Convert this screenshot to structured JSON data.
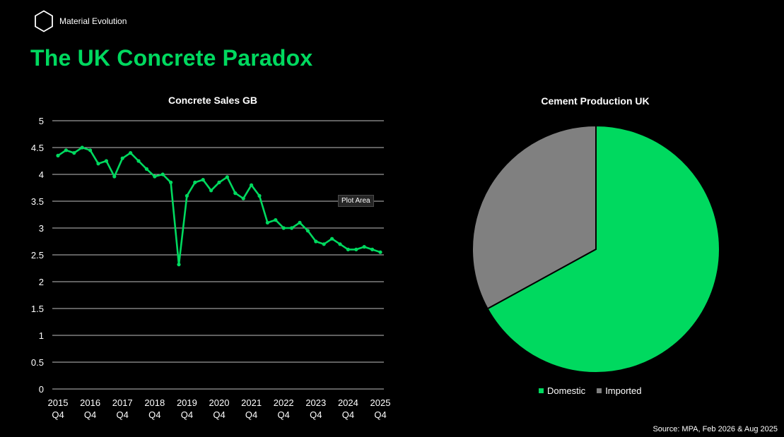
{
  "brand": {
    "name": "Material Evolution",
    "logo_icon": "hexagon-outline-icon"
  },
  "page_title": "The UK Concrete Paradox",
  "tooltip": "Plot Area",
  "source": "Source: MPA, Feb 2026 & Aug 2025",
  "colors": {
    "accent": "#00d95f",
    "grey": "#808080",
    "gridline": "#ffffff",
    "background": "#000000"
  },
  "chart_data": [
    {
      "type": "line",
      "title": "Concrete Sales GB",
      "xlabel": "",
      "ylabel": "",
      "ylim": [
        0,
        5
      ],
      "yticks": [
        "0",
        "0.5",
        "1",
        "1.5",
        "2",
        "2.5",
        "3",
        "3.5",
        "4",
        "4.5",
        "5"
      ],
      "xticks": [
        {
          "line1": "2015",
          "line2": "Q4"
        },
        {
          "line1": "2016",
          "line2": "Q4"
        },
        {
          "line1": "2017",
          "line2": "Q4"
        },
        {
          "line1": "2018",
          "line2": "Q4"
        },
        {
          "line1": "2019",
          "line2": "Q4"
        },
        {
          "line1": "2020",
          "line2": "Q4"
        },
        {
          "line1": "2021",
          "line2": "Q4"
        },
        {
          "line1": "2022",
          "line2": "Q4"
        },
        {
          "line1": "2023",
          "line2": "Q4"
        },
        {
          "line1": "2024",
          "line2": "Q4"
        },
        {
          "line1": "2025",
          "line2": "Q4"
        }
      ],
      "grid": true,
      "values": [
        4.35,
        4.45,
        4.4,
        4.5,
        4.45,
        4.2,
        4.25,
        3.96,
        4.3,
        4.4,
        4.25,
        4.1,
        3.96,
        4.0,
        3.85,
        2.32,
        3.6,
        3.85,
        3.9,
        3.7,
        3.85,
        3.95,
        3.65,
        3.55,
        3.8,
        3.6,
        3.1,
        3.15,
        3.0,
        3.0,
        3.1,
        2.95,
        2.75,
        2.7,
        2.8,
        2.7,
        2.6,
        2.6,
        2.65,
        2.6,
        2.55
      ]
    },
    {
      "type": "pie",
      "title": "Cement Production UK",
      "legend_position": "bottom",
      "slices": [
        {
          "label": "Domestic",
          "value": 67,
          "color": "#00d95f"
        },
        {
          "label": "Imported",
          "value": 33,
          "color": "#808080"
        }
      ]
    }
  ]
}
